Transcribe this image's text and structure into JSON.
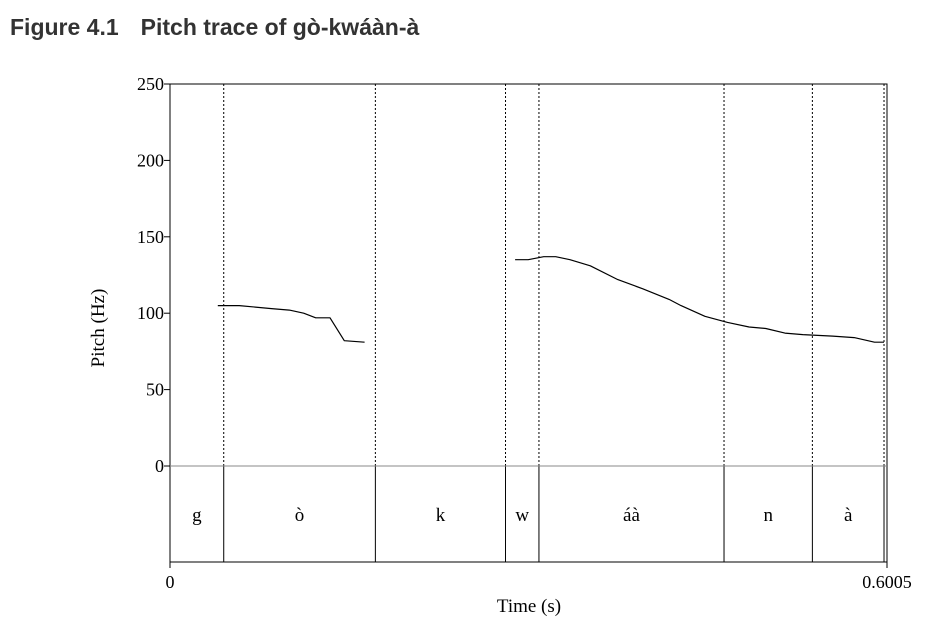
{
  "figure": {
    "number": "Figure 4.1",
    "caption": "Pitch trace of gò-kwáàn-à"
  },
  "chart_data": {
    "type": "line",
    "title": "Pitch trace of gò-kwáàn-à",
    "xlabel": "Time (s)",
    "ylabel": "Pitch (Hz)",
    "xlim": [
      0,
      0.6005
    ],
    "ylim": [
      0,
      250
    ],
    "x_tick_labels": [
      "0",
      "0.6005"
    ],
    "y_ticks": [
      0,
      50,
      100,
      150,
      200,
      250
    ],
    "grid": false,
    "series": [
      {
        "points": [
          [
            0.04,
            105
          ],
          [
            0.058,
            105
          ],
          [
            0.085,
            103
          ],
          [
            0.1,
            102
          ],
          [
            0.112,
            100
          ],
          [
            0.122,
            97
          ],
          [
            0.134,
            97
          ],
          [
            0.146,
            82
          ],
          [
            0.163,
            81
          ]
        ]
      },
      {
        "points": [
          [
            0.289,
            135
          ],
          [
            0.3,
            135
          ],
          [
            0.313,
            137
          ],
          [
            0.323,
            137
          ],
          [
            0.335,
            135
          ],
          [
            0.352,
            131
          ],
          [
            0.375,
            122
          ],
          [
            0.396,
            116
          ],
          [
            0.418,
            109
          ],
          [
            0.428,
            105
          ],
          [
            0.448,
            98
          ],
          [
            0.467,
            94
          ],
          [
            0.485,
            91
          ],
          [
            0.499,
            90
          ],
          [
            0.515,
            87
          ],
          [
            0.53,
            86
          ],
          [
            0.555,
            85
          ],
          [
            0.573,
            84
          ],
          [
            0.59,
            81
          ],
          [
            0.598,
            81
          ]
        ]
      }
    ],
    "segments": [
      {
        "label": "g",
        "start": 0.0,
        "end": 0.045
      },
      {
        "label": "ò",
        "start": 0.045,
        "end": 0.172
      },
      {
        "label": "k",
        "start": 0.172,
        "end": 0.281
      },
      {
        "label": "w",
        "start": 0.281,
        "end": 0.309
      },
      {
        "label": "áà",
        "start": 0.309,
        "end": 0.464
      },
      {
        "label": "n",
        "start": 0.464,
        "end": 0.538
      },
      {
        "label": "à",
        "start": 0.538,
        "end": 0.598
      }
    ]
  },
  "colors": {
    "trace": "#000000",
    "frame": "#000000",
    "zero_line": "#888888",
    "title": "#333333"
  }
}
